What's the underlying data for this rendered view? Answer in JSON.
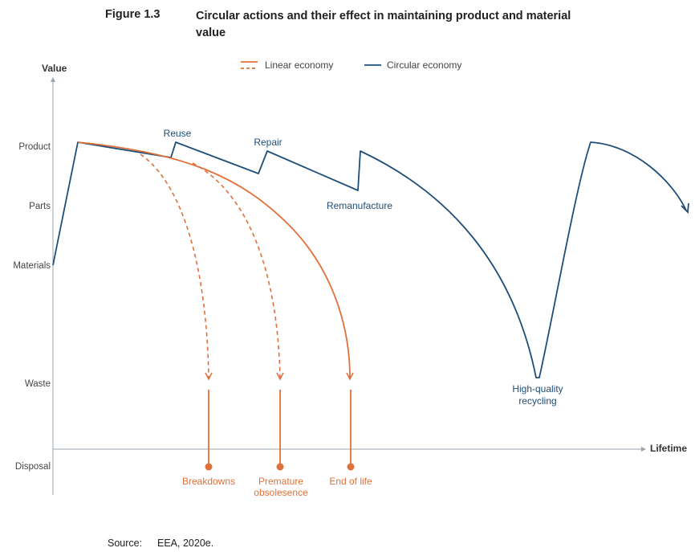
{
  "figure": {
    "number": "Figure 1.3",
    "title": "Circular actions and their effect in maintaining product and material value"
  },
  "axes": {
    "y_title": "Value",
    "x_title": "Lifetime",
    "y_levels": [
      "Product",
      "Parts",
      "Materials",
      "Waste",
      "Disposal"
    ]
  },
  "legend": {
    "linear": "Linear economy",
    "circular": "Circular economy"
  },
  "circular_labels": {
    "reuse": "Reuse",
    "repair": "Repair",
    "remanufacture": "Remanufacture",
    "recycling_line1": "High-quality",
    "recycling_line2": "recycling"
  },
  "linear_labels": {
    "breakdowns": "Breakdowns",
    "premature_line1": "Premature",
    "premature_line2": "obsolesence",
    "end_of_life": "End of life"
  },
  "source": {
    "label": "Source:",
    "text": "EEA, 2020e."
  },
  "colors": {
    "linear": "#e0703a",
    "circular": "#1f4e79",
    "axis": "#9aa3ad",
    "text": "#333333"
  }
}
